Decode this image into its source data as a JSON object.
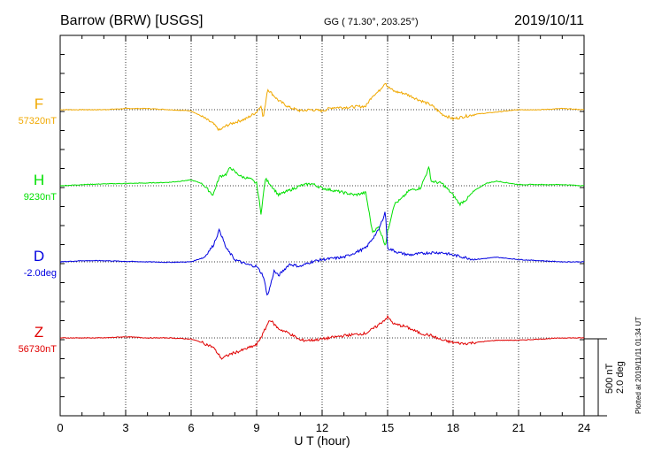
{
  "header": {
    "station": "Barrow (BRW)  [USGS]",
    "coords": "GG ( 71.30°, 203.25°)",
    "date": "2019/10/11"
  },
  "footer": {
    "plotted": "Plotted at 2019/11/11 01:34  UT"
  },
  "colors": {
    "F": "#f0a800",
    "H": "#00e000",
    "D": "#0000e0",
    "Z": "#e00000",
    "frame": "#000000"
  },
  "chart_data": {
    "type": "line",
    "xlabel": "U T (hour)",
    "xlim": [
      0,
      24
    ],
    "x_ticks": [
      "0",
      "3",
      "6",
      "9",
      "12",
      "15",
      "18",
      "21",
      "24"
    ],
    "scale": {
      "nT": "500 nT",
      "deg": "2.0 deg"
    },
    "series": [
      {
        "key": "F",
        "name": "F",
        "baseline_label": "57320nT",
        "points": [
          [
            0,
            0
          ],
          [
            1,
            0
          ],
          [
            2,
            0
          ],
          [
            3,
            5
          ],
          [
            4,
            5
          ],
          [
            5,
            0
          ],
          [
            6,
            -5
          ],
          [
            6.5,
            -30
          ],
          [
            7,
            -60
          ],
          [
            7.3,
            -90
          ],
          [
            7.6,
            -70
          ],
          [
            8,
            -55
          ],
          [
            8.5,
            -40
          ],
          [
            9,
            -10
          ],
          [
            9.2,
            20
          ],
          [
            9.3,
            -40
          ],
          [
            9.5,
            90
          ],
          [
            9.8,
            60
          ],
          [
            10,
            40
          ],
          [
            10.5,
            10
          ],
          [
            11,
            -5
          ],
          [
            11.5,
            0
          ],
          [
            12,
            -5
          ],
          [
            12.5,
            10
          ],
          [
            13,
            10
          ],
          [
            14,
            15
          ],
          [
            14.3,
            60
          ],
          [
            14.6,
            80
          ],
          [
            14.9,
            120
          ],
          [
            15,
            100
          ],
          [
            15.3,
            80
          ],
          [
            15.8,
            70
          ],
          [
            16.5,
            40
          ],
          [
            17,
            20
          ],
          [
            17.5,
            -20
          ],
          [
            18,
            -40
          ],
          [
            18.5,
            -30
          ],
          [
            19,
            -20
          ],
          [
            19.5,
            -15
          ],
          [
            20,
            -10
          ],
          [
            21,
            0
          ],
          [
            22,
            0
          ],
          [
            23,
            5
          ],
          [
            24,
            0
          ]
        ]
      },
      {
        "key": "H",
        "name": "H",
        "baseline_label": "9230nT",
        "points": [
          [
            0,
            0
          ],
          [
            1,
            5
          ],
          [
            2,
            8
          ],
          [
            3,
            10
          ],
          [
            4,
            12
          ],
          [
            5,
            15
          ],
          [
            5.5,
            20
          ],
          [
            6,
            25
          ],
          [
            6.5,
            10
          ],
          [
            7,
            -40
          ],
          [
            7.3,
            40
          ],
          [
            7.6,
            50
          ],
          [
            7.8,
            80
          ],
          [
            8,
            60
          ],
          [
            8.3,
            40
          ],
          [
            8.7,
            30
          ],
          [
            9,
            10
          ],
          [
            9.2,
            -120
          ],
          [
            9.4,
            30
          ],
          [
            9.6,
            10
          ],
          [
            10,
            -40
          ],
          [
            10.5,
            -20
          ],
          [
            11,
            0
          ],
          [
            11.5,
            10
          ],
          [
            12,
            -10
          ],
          [
            12.5,
            -20
          ],
          [
            13,
            -30
          ],
          [
            13.5,
            -40
          ],
          [
            14,
            -30
          ],
          [
            14.3,
            -200
          ],
          [
            14.6,
            -180
          ],
          [
            14.9,
            -260
          ],
          [
            15,
            -200
          ],
          [
            15.3,
            -80
          ],
          [
            15.6,
            -60
          ],
          [
            16,
            -20
          ],
          [
            16.5,
            -10
          ],
          [
            16.9,
            80
          ],
          [
            17,
            20
          ],
          [
            17.5,
            10
          ],
          [
            18,
            -40
          ],
          [
            18.3,
            -80
          ],
          [
            18.6,
            -60
          ],
          [
            19,
            -20
          ],
          [
            19.5,
            10
          ],
          [
            20,
            20
          ],
          [
            21,
            5
          ],
          [
            22,
            5
          ],
          [
            23,
            5
          ],
          [
            24,
            0
          ]
        ]
      },
      {
        "key": "D",
        "name": "D",
        "baseline_label": "-2.0deg",
        "points": [
          [
            0,
            0
          ],
          [
            1,
            5
          ],
          [
            2,
            5
          ],
          [
            3,
            2
          ],
          [
            4,
            0
          ],
          [
            5,
            -2
          ],
          [
            6,
            0
          ],
          [
            6.6,
            20
          ],
          [
            7,
            70
          ],
          [
            7.3,
            140
          ],
          [
            7.6,
            60
          ],
          [
            8,
            10
          ],
          [
            8.5,
            -10
          ],
          [
            9,
            -20
          ],
          [
            9.3,
            -60
          ],
          [
            9.5,
            -150
          ],
          [
            9.8,
            -40
          ],
          [
            10,
            -60
          ],
          [
            10.5,
            -10
          ],
          [
            11,
            -20
          ],
          [
            11.5,
            0
          ],
          [
            12,
            10
          ],
          [
            13,
            20
          ],
          [
            13.5,
            40
          ],
          [
            14,
            60
          ],
          [
            14.3,
            100
          ],
          [
            14.6,
            140
          ],
          [
            14.9,
            220
          ],
          [
            15,
            60
          ],
          [
            15.5,
            40
          ],
          [
            16,
            30
          ],
          [
            16.9,
            40
          ],
          [
            17.5,
            40
          ],
          [
            18,
            30
          ],
          [
            18.5,
            20
          ],
          [
            19,
            10
          ],
          [
            20,
            20
          ],
          [
            21,
            10
          ],
          [
            22,
            5
          ],
          [
            23,
            0
          ],
          [
            24,
            0
          ]
        ]
      },
      {
        "key": "Z",
        "name": "Z",
        "baseline_label": "56730nT",
        "points": [
          [
            0,
            0
          ],
          [
            1,
            0
          ],
          [
            2,
            0
          ],
          [
            3,
            5
          ],
          [
            4,
            0
          ],
          [
            5,
            0
          ],
          [
            6,
            -5
          ],
          [
            6.5,
            -20
          ],
          [
            7,
            -40
          ],
          [
            7.4,
            -90
          ],
          [
            7.8,
            -70
          ],
          [
            8.3,
            -55
          ],
          [
            9,
            -30
          ],
          [
            9.3,
            20
          ],
          [
            9.6,
            80
          ],
          [
            10,
            40
          ],
          [
            10.5,
            20
          ],
          [
            11,
            -10
          ],
          [
            11.5,
            -10
          ],
          [
            12,
            -5
          ],
          [
            13,
            10
          ],
          [
            14,
            20
          ],
          [
            14.5,
            50
          ],
          [
            15,
            90
          ],
          [
            15.3,
            60
          ],
          [
            15.8,
            50
          ],
          [
            16.5,
            20
          ],
          [
            17,
            10
          ],
          [
            17.5,
            -10
          ],
          [
            18,
            -20
          ],
          [
            18.5,
            -25
          ],
          [
            19,
            -20
          ],
          [
            20,
            -10
          ],
          [
            21,
            -10
          ],
          [
            22,
            -5
          ],
          [
            23,
            0
          ],
          [
            24,
            0
          ]
        ]
      }
    ]
  }
}
